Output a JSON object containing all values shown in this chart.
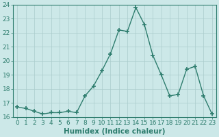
{
  "x": [
    0,
    1,
    2,
    3,
    4,
    5,
    6,
    7,
    8,
    9,
    10,
    11,
    12,
    13,
    14,
    15,
    16,
    17,
    18,
    19,
    20,
    21,
    22,
    23
  ],
  "y": [
    16.7,
    16.6,
    16.4,
    16.2,
    16.3,
    16.3,
    16.4,
    16.3,
    17.5,
    18.2,
    19.3,
    20.5,
    22.2,
    22.1,
    23.8,
    22.6,
    20.4,
    19.0,
    17.5,
    17.6,
    19.4,
    19.6,
    17.5,
    16.2
  ],
  "xlabel": "Humidex (Indice chaleur)",
  "ylim": [
    16,
    24
  ],
  "xlim": [
    -0.5,
    23.5
  ],
  "yticks": [
    16,
    17,
    18,
    19,
    20,
    21,
    22,
    23,
    24
  ],
  "xticks": [
    0,
    1,
    2,
    3,
    4,
    5,
    6,
    7,
    8,
    9,
    10,
    11,
    12,
    13,
    14,
    15,
    16,
    17,
    18,
    19,
    20,
    21,
    22,
    23
  ],
  "xtick_labels": [
    "0",
    "1",
    "2",
    "3",
    "4",
    "5",
    "6",
    "7",
    "8",
    "9",
    "10",
    "11",
    "12",
    "13",
    "14",
    "15",
    "16",
    "17",
    "18",
    "19",
    "20",
    "21",
    "22",
    "23"
  ],
  "line_color": "#2e7d6e",
  "marker": "+",
  "marker_size": 4,
  "marker_lw": 1.2,
  "line_width": 1.0,
  "bg_color": "#cce8e8",
  "grid_color": "#aacccc",
  "spine_color": "#2e7d6e",
  "tick_color": "#2e7d6e",
  "label_color": "#2e7d6e",
  "font_size": 6.5,
  "xlabel_fontsize": 7.5
}
